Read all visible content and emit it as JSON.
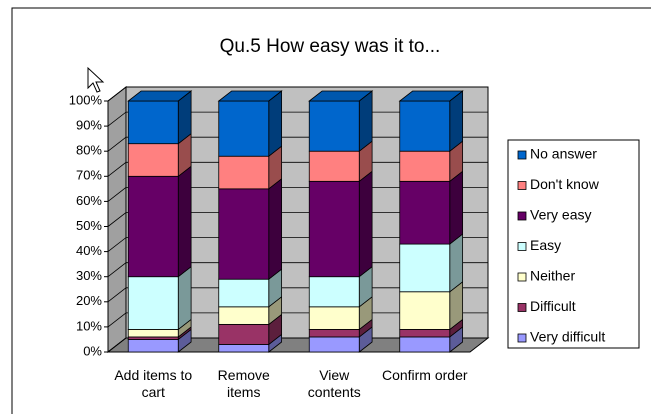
{
  "chart_data": {
    "type": "stacked_bar_3d",
    "title": "Qu.5 How easy was it to...",
    "categories": [
      "Add items to cart",
      "Remove items",
      "View contents",
      "Confirm order"
    ],
    "series": [
      {
        "name": "No answer",
        "color": "#0066cc",
        "values": [
          17,
          22,
          20,
          20
        ]
      },
      {
        "name": "Don't know",
        "color": "#ff8080",
        "values": [
          13,
          13,
          12,
          12
        ]
      },
      {
        "name": "Very easy",
        "color": "#660066",
        "values": [
          40,
          36,
          38,
          25
        ]
      },
      {
        "name": "Easy",
        "color": "#ccffff",
        "values": [
          21,
          11,
          12,
          19
        ]
      },
      {
        "name": "Neither",
        "color": "#ffffcc",
        "values": [
          3,
          7,
          9,
          15
        ]
      },
      {
        "name": "Difficult",
        "color": "#993366",
        "values": [
          1,
          8,
          3,
          3
        ]
      },
      {
        "name": "Very difficult",
        "color": "#9999ff",
        "values": [
          5,
          3,
          6,
          6
        ]
      }
    ],
    "ylim": [
      0,
      100
    ],
    "yticks": [
      {
        "value": 0,
        "label": "0%"
      },
      {
        "value": 10,
        "label": "10%"
      },
      {
        "value": 20,
        "label": "20%"
      },
      {
        "value": 30,
        "label": "30%"
      },
      {
        "value": 40,
        "label": "40%"
      },
      {
        "value": 50,
        "label": "50%"
      },
      {
        "value": 60,
        "label": "60%"
      },
      {
        "value": 70,
        "label": "70%"
      },
      {
        "value": 80,
        "label": "80%"
      },
      {
        "value": 90,
        "label": "90%"
      },
      {
        "value": 100,
        "label": "100%"
      }
    ],
    "grid": true,
    "legend": "right"
  }
}
